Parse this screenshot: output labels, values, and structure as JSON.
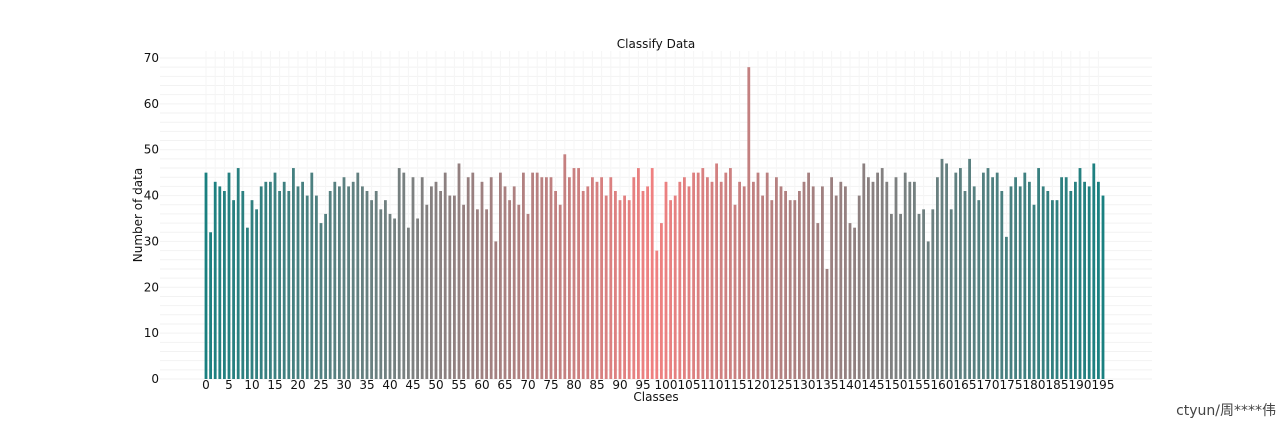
{
  "chart_data": {
    "type": "bar",
    "title": "Classify Data",
    "xlabel": "Classes",
    "ylabel": "Number of data",
    "ylim": [
      0,
      70
    ],
    "y_ticks": [
      0,
      10,
      20,
      30,
      40,
      50,
      60,
      70
    ],
    "x_ticks": [
      0,
      5,
      10,
      15,
      20,
      25,
      30,
      35,
      40,
      45,
      50,
      55,
      60,
      65,
      70,
      75,
      80,
      85,
      90,
      95,
      100,
      105,
      110,
      115,
      120,
      125,
      130,
      135,
      140,
      145,
      150,
      155,
      160,
      165,
      170,
      175,
      180,
      185,
      190,
      195
    ],
    "grid": true,
    "colors": {
      "edge": "#1a8080",
      "middle": "#f08080"
    },
    "values": [
      45,
      32,
      43,
      42,
      41,
      45,
      39,
      46,
      41,
      33,
      39,
      37,
      42,
      43,
      43,
      45,
      41,
      43,
      41,
      46,
      42,
      43,
      40,
      45,
      40,
      34,
      36,
      41,
      43,
      42,
      44,
      42,
      43,
      45,
      42,
      41,
      39,
      41,
      37,
      39,
      36,
      35,
      46,
      45,
      33,
      44,
      35,
      44,
      38,
      42,
      43,
      41,
      45,
      40,
      40,
      47,
      38,
      44,
      45,
      37,
      43,
      37,
      44,
      30,
      45,
      42,
      39,
      42,
      38,
      45,
      36,
      45,
      45,
      44,
      44,
      44,
      41,
      38,
      49,
      44,
      46,
      46,
      41,
      42,
      44,
      43,
      44,
      40,
      44,
      41,
      39,
      40,
      39,
      44,
      46,
      41,
      42,
      46,
      28,
      34,
      43,
      39,
      40,
      43,
      44,
      42,
      45,
      45,
      46,
      44,
      43,
      47,
      43,
      45,
      46,
      38,
      43,
      42,
      68,
      43,
      45,
      40,
      45,
      39,
      44,
      42,
      41,
      39,
      39,
      41,
      43,
      45,
      42,
      34,
      42,
      24,
      44,
      40,
      43,
      42,
      34,
      33,
      40,
      47,
      44,
      43,
      45,
      46,
      43,
      36,
      44,
      36,
      45,
      43,
      43,
      36,
      37,
      30,
      37,
      44,
      48,
      47,
      37,
      45,
      46,
      41,
      48,
      42,
      39,
      45,
      46,
      44,
      45,
      41,
      31,
      42,
      44,
      42,
      45,
      43,
      38,
      46,
      42,
      41,
      39,
      39,
      44,
      44,
      41,
      43,
      46,
      43,
      42,
      47,
      43,
      40
    ]
  },
  "watermark": "ctyun/周****伟"
}
